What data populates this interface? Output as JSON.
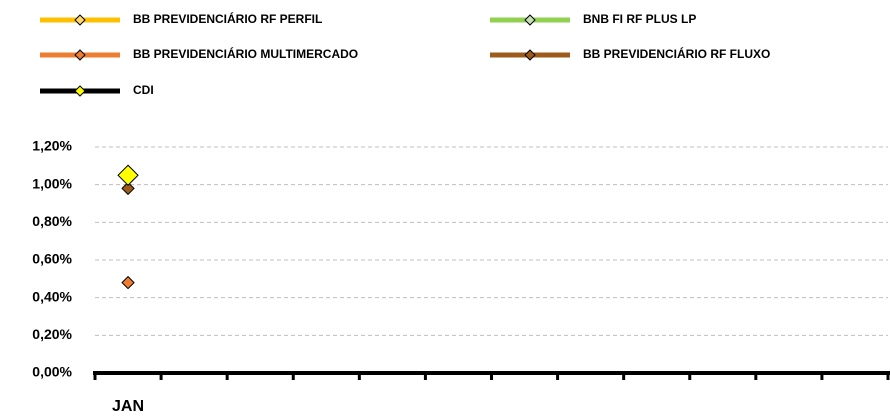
{
  "chart_data": {
    "type": "line",
    "categories": [
      "JAN",
      null,
      null,
      null,
      null,
      null,
      null,
      null,
      null,
      null,
      null,
      null
    ],
    "series": [
      {
        "name": "BB PREVIDENCIÁRIO RF PERFIL",
        "color": "#ffc000",
        "marker_color": "#ffd966",
        "values": [
          1.05,
          null,
          null,
          null,
          null,
          null,
          null,
          null,
          null,
          null,
          null,
          null
        ]
      },
      {
        "name": "BNB FI RF PLUS LP",
        "color": "#92d050",
        "marker_color": "#c5e0b4",
        "values": [
          1.04,
          null,
          null,
          null,
          null,
          null,
          null,
          null,
          null,
          null,
          null,
          null
        ]
      },
      {
        "name": "BB PREVIDENCIÁRIO MULTIMERCADO",
        "color": "#ed7d31",
        "marker_color": "#ed7d31",
        "values": [
          0.48,
          null,
          null,
          null,
          null,
          null,
          null,
          null,
          null,
          null,
          null,
          null
        ]
      },
      {
        "name": "BB PREVIDENCIÁRIO RF FLUXO",
        "color": "#9c5b1a",
        "marker_color": "#9c5b1a",
        "values": [
          0.98,
          null,
          null,
          null,
          null,
          null,
          null,
          null,
          null,
          null,
          null,
          null
        ]
      },
      {
        "name": "CDI",
        "color": "#000000",
        "marker_color": "#ffff00",
        "values": [
          1.05,
          null,
          null,
          null,
          null,
          null,
          null,
          null,
          null,
          null,
          null,
          null
        ]
      }
    ],
    "ylim": [
      0,
      1.2
    ],
    "yticks": [
      {
        "value": 0,
        "label": "0,00%"
      },
      {
        "value": 0.2,
        "label": "0,20%"
      },
      {
        "value": 0.4,
        "label": "0,40%"
      },
      {
        "value": 0.6,
        "label": "0,60%"
      },
      {
        "value": 0.8,
        "label": "0,80%"
      },
      {
        "value": 1.0,
        "label": "1,00%"
      },
      {
        "value": 1.2,
        "label": "1,20%"
      }
    ],
    "grid": true
  }
}
